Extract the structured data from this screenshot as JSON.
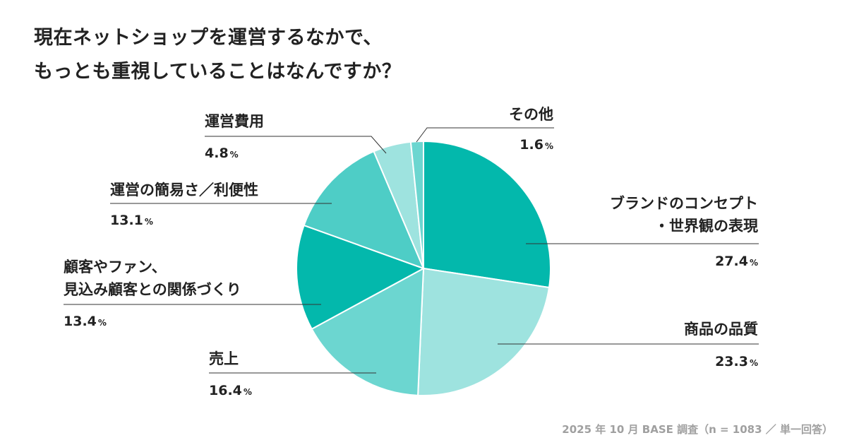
{
  "title": {
    "line1": "現在ネットショップを運営するなかで、",
    "line2": "もっとも重視していることはなんですか？"
  },
  "chart_data": {
    "type": "pie",
    "slices": [
      {
        "label_lines": [
          "ブランドのコンセプト",
          "・世界観の表現"
        ],
        "value": 27.4,
        "value_label": "27.4",
        "color": "#03b8ac"
      },
      {
        "label_lines": [
          "商品の品質"
        ],
        "value": 23.3,
        "value_label": "23.3",
        "color": "#9ee3df"
      },
      {
        "label_lines": [
          "売上"
        ],
        "value": 16.4,
        "value_label": "16.4",
        "color": "#6cd6d0"
      },
      {
        "label_lines": [
          "顧客やファン、",
          "見込み顧客との関係づくり"
        ],
        "value": 13.4,
        "value_label": "13.4",
        "color": "#03b8ac"
      },
      {
        "label_lines": [
          "運営の簡易さ／利便性"
        ],
        "value": 13.1,
        "value_label": "13.1",
        "color": "#4ecdc6"
      },
      {
        "label_lines": [
          "運営費用"
        ],
        "value": 4.8,
        "value_label": "4.8",
        "color": "#9ee3df"
      },
      {
        "label_lines": [
          "その他"
        ],
        "value": 1.6,
        "value_label": "1.6",
        "color": "#6cd6d0"
      }
    ],
    "percent_sign": "%"
  },
  "footer": "2025 年 10 月 BASE 調査（n = 1083 ／ 単一回答）"
}
